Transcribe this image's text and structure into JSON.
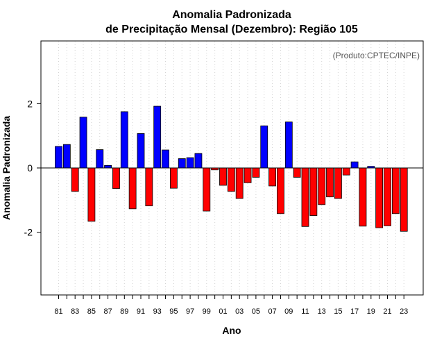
{
  "chart_data": {
    "type": "bar",
    "title_line1": "Anomalia Padronizada",
    "title_line2": "de Precipitação Mensal (Dezembro): Região 105",
    "xlabel": "Ano",
    "ylabel": "Anomalia Padronizada",
    "credit": "(Produto:CPTEC/INPE)",
    "ylim": [
      -3.95,
      3.95
    ],
    "yticks": [
      -2,
      0,
      2
    ],
    "ytick_labels": [
      "-2",
      "0",
      "2"
    ],
    "positive_color": "#0000ff",
    "negative_color": "#ff0000",
    "categories": [
      "1981",
      "1982",
      "1983",
      "1984",
      "1985",
      "1986",
      "1987",
      "1988",
      "1989",
      "1990",
      "1991",
      "1992",
      "1993",
      "1994",
      "1995",
      "1996",
      "1997",
      "1998",
      "1999",
      "2000",
      "2001",
      "2002",
      "2003",
      "2004",
      "2005",
      "2006",
      "2007",
      "2008",
      "2009",
      "2010",
      "2011",
      "2012",
      "2013",
      "2014",
      "2015",
      "2016",
      "2017",
      "2018",
      "2019",
      "2020",
      "2021",
      "2022",
      "2023"
    ],
    "xtick_labels": [
      "81",
      "83",
      "85",
      "87",
      "89",
      "91",
      "93",
      "95",
      "97",
      "99",
      "01",
      "03",
      "05",
      "07",
      "09",
      "11",
      "13",
      "15",
      "17",
      "19",
      "21",
      "23"
    ],
    "values": [
      0.67,
      0.73,
      -0.73,
      1.58,
      -1.66,
      0.57,
      0.08,
      -0.64,
      1.75,
      -1.27,
      1.07,
      -1.18,
      1.92,
      0.56,
      -0.63,
      0.29,
      0.32,
      0.45,
      -1.34,
      -0.06,
      -0.54,
      -0.73,
      -0.95,
      -0.46,
      -0.29,
      1.31,
      -0.56,
      -1.42,
      1.43,
      -0.29,
      -1.82,
      -1.48,
      -1.14,
      -0.9,
      -0.95,
      -0.22,
      0.19,
      -1.81,
      0.05,
      -1.86,
      -1.8,
      -1.42,
      -1.97
    ]
  }
}
